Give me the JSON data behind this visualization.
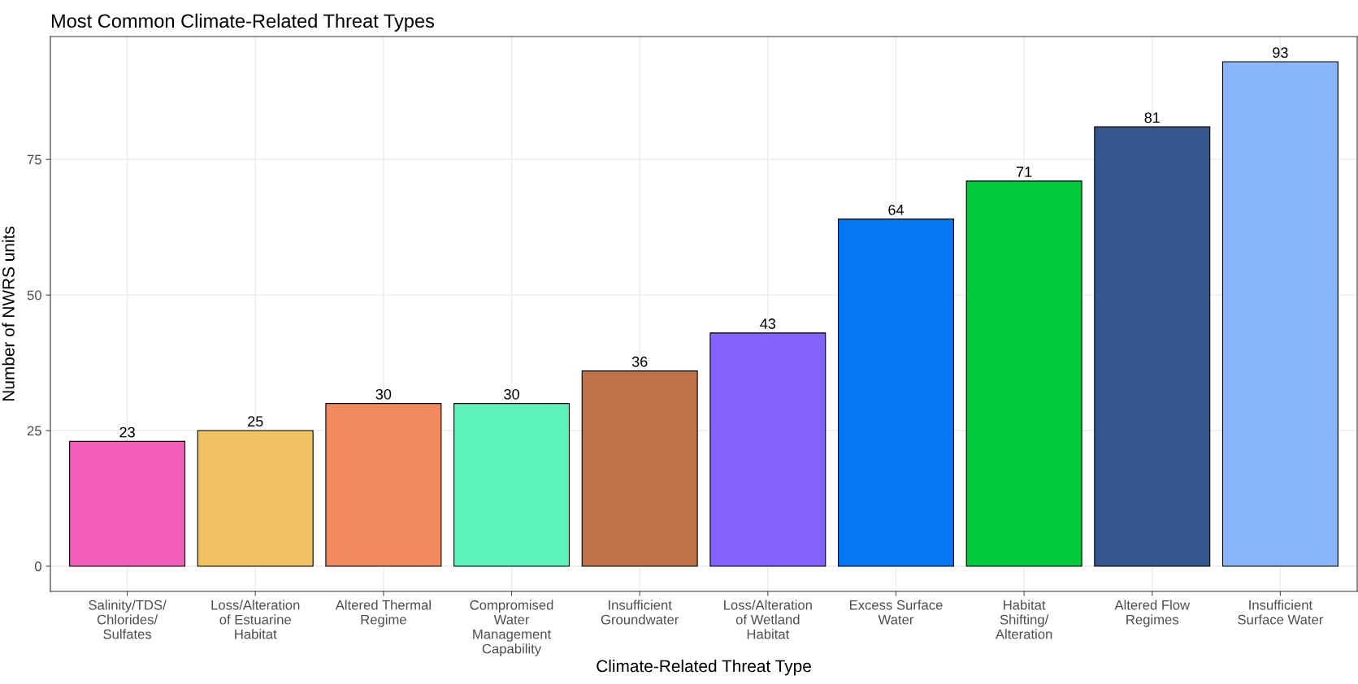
{
  "chart_data": {
    "type": "bar",
    "title": "Most Common Climate-Related Threat Types",
    "xlabel": "Climate-Related Threat Type",
    "ylabel": "Number of NWRS units",
    "categories": [
      "Salinity/TDS/\nChlorides/\nSulfates",
      "Loss/Alteration\nof Estuarine\nHabitat",
      "Altered Thermal\nRegime",
      "Compromised\nWater\nManagement\nCapability",
      "Insufficient\nGroundwater",
      "Loss/Alteration\nof Wetland\nHabitat",
      "Excess Surface\nWater",
      "Habitat\nShifting/\nAlteration",
      "Altered Flow\nRegimes",
      "Insufficient\nSurface Water"
    ],
    "values": [
      23,
      25,
      30,
      30,
      36,
      43,
      64,
      71,
      81,
      93
    ],
    "colors": [
      "#f25eb8",
      "#f2c262",
      "#f28a5e",
      "#5ef2bb",
      "#c0714a",
      "#8462fd",
      "#0477f2",
      "#02c93a",
      "#335690",
      "#89b5fd"
    ],
    "ylim": [
      -4.65,
      97.65
    ],
    "yticks": [
      0,
      25,
      50,
      75
    ],
    "grid": true,
    "data_labels": true,
    "legend": false
  }
}
